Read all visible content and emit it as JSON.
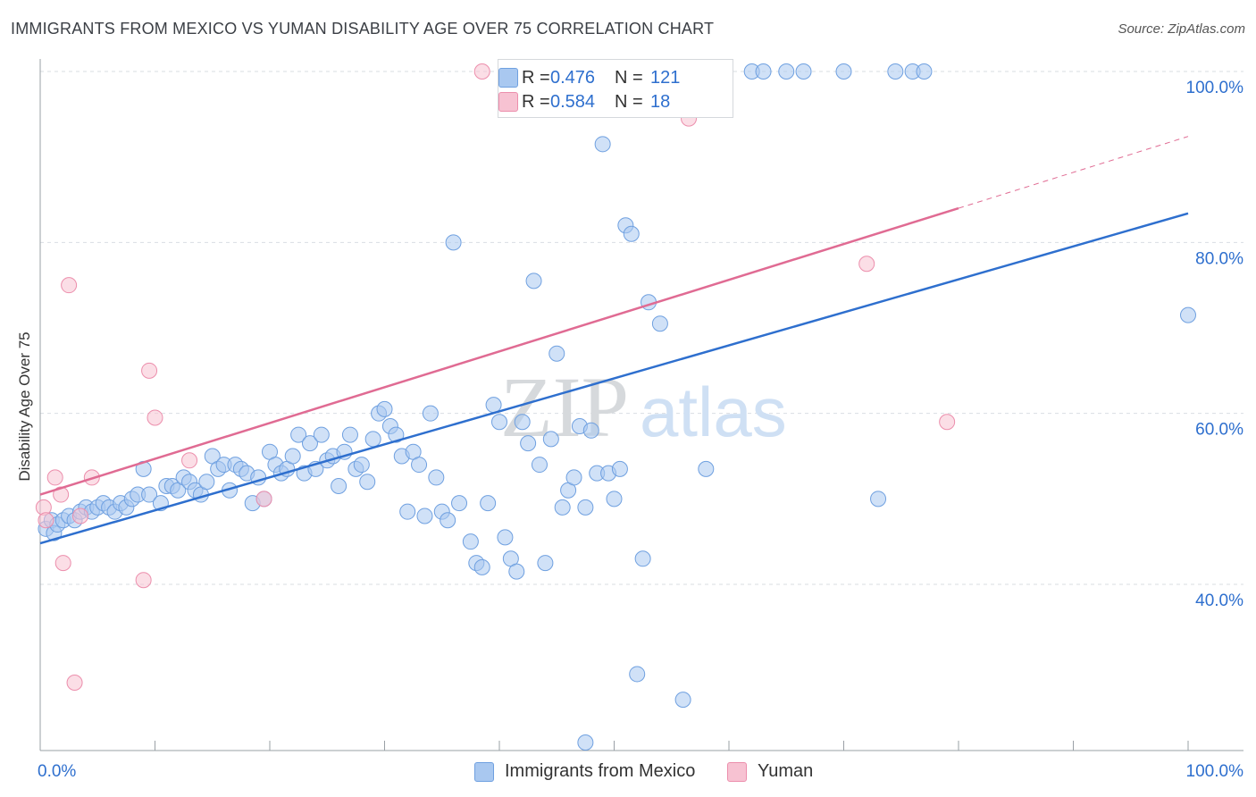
{
  "title": "IMMIGRANTS FROM MEXICO VS YUMAN DISABILITY AGE OVER 75 CORRELATION CHART",
  "source": "Source: ZipAtlas.com",
  "watermark": {
    "zip": "ZIP",
    "atlas": "atlas"
  },
  "colors": {
    "blue_fill": "#a9c8f0",
    "blue_stroke": "#6fa0e0",
    "blue_line": "#2e6fce",
    "pink_fill": "#f7c2d2",
    "pink_stroke": "#ec8eac",
    "pink_line": "#e06b93",
    "grid": "#d9dde2",
    "tick_label": "#2e6fce"
  },
  "legend": {
    "rows": [
      {
        "r_label": "R =",
        "r_value": "0.476",
        "n_label": "N =",
        "n_value": "121"
      },
      {
        "r_label": "R =",
        "r_value": "0.584",
        "n_label": "N =",
        "n_value": "18"
      }
    ]
  },
  "bottom_legend": [
    "Immigrants from Mexico",
    "Yuman"
  ],
  "chart_data": {
    "type": "scatter",
    "title": "IMMIGRANTS FROM MEXICO VS YUMAN DISABILITY AGE OVER 75 CORRELATION CHART",
    "xlabel": "",
    "ylabel": "Disability Age Over 75",
    "xlim": [
      0,
      100
    ],
    "ylim": [
      20,
      102
    ],
    "x_tick_labels": [
      "0.0%",
      "100.0%"
    ],
    "y_tick_labels": [
      "40.0%",
      "60.0%",
      "80.0%",
      "100.0%"
    ],
    "y_ticks": [
      40,
      60,
      80,
      100
    ],
    "grid": true,
    "series": [
      {
        "name": "Immigrants from Mexico",
        "r": 0.476,
        "n": 121,
        "trend": {
          "x": [
            0,
            100
          ],
          "y": [
            44.8,
            83.4
          ],
          "dashed_to": null
        },
        "points": [
          [
            0.5,
            46.5
          ],
          [
            1.0,
            47.5
          ],
          [
            1.2,
            46.0
          ],
          [
            1.5,
            47.0
          ],
          [
            2.0,
            47.5
          ],
          [
            2.5,
            48.0
          ],
          [
            3.0,
            47.5
          ],
          [
            3.5,
            48.5
          ],
          [
            4.0,
            49.0
          ],
          [
            4.5,
            48.5
          ],
          [
            5.0,
            49.0
          ],
          [
            5.5,
            49.5
          ],
          [
            6.0,
            49.0
          ],
          [
            6.5,
            48.5
          ],
          [
            7.0,
            49.5
          ],
          [
            7.5,
            49.0
          ],
          [
            8.0,
            50.0
          ],
          [
            8.5,
            50.5
          ],
          [
            9.0,
            53.5
          ],
          [
            9.5,
            50.5
          ],
          [
            10.5,
            49.5
          ],
          [
            11.0,
            51.5
          ],
          [
            11.5,
            51.5
          ],
          [
            12.0,
            51.0
          ],
          [
            12.5,
            52.5
          ],
          [
            13.0,
            52.0
          ],
          [
            13.5,
            51.0
          ],
          [
            14.0,
            50.5
          ],
          [
            14.5,
            52.0
          ],
          [
            15.0,
            55.0
          ],
          [
            15.5,
            53.5
          ],
          [
            16.0,
            54.0
          ],
          [
            16.5,
            51.0
          ],
          [
            17.0,
            54.0
          ],
          [
            17.5,
            53.5
          ],
          [
            18.0,
            53.0
          ],
          [
            18.5,
            49.5
          ],
          [
            19.0,
            52.5
          ],
          [
            19.5,
            50.0
          ],
          [
            20.0,
            55.5
          ],
          [
            20.5,
            54.0
          ],
          [
            21.0,
            53.0
          ],
          [
            21.5,
            53.5
          ],
          [
            22.0,
            55.0
          ],
          [
            22.5,
            57.5
          ],
          [
            23.0,
            53.0
          ],
          [
            23.5,
            56.5
          ],
          [
            24.0,
            53.5
          ],
          [
            24.5,
            57.5
          ],
          [
            25.0,
            54.5
          ],
          [
            25.5,
            55.0
          ],
          [
            26.0,
            51.5
          ],
          [
            26.5,
            55.5
          ],
          [
            27.0,
            57.5
          ],
          [
            27.5,
            53.5
          ],
          [
            28.0,
            54.0
          ],
          [
            28.5,
            52.0
          ],
          [
            29.0,
            57.0
          ],
          [
            29.5,
            60.0
          ],
          [
            30.0,
            60.5
          ],
          [
            30.5,
            58.5
          ],
          [
            31.0,
            57.5
          ],
          [
            31.5,
            55.0
          ],
          [
            32.0,
            48.5
          ],
          [
            32.5,
            55.5
          ],
          [
            33.0,
            54.0
          ],
          [
            33.5,
            48.0
          ],
          [
            34.0,
            60.0
          ],
          [
            34.5,
            52.5
          ],
          [
            35.0,
            48.5
          ],
          [
            35.5,
            47.5
          ],
          [
            36.0,
            80.0
          ],
          [
            36.5,
            49.5
          ],
          [
            37.5,
            45.0
          ],
          [
            38.0,
            42.5
          ],
          [
            38.5,
            42.0
          ],
          [
            39.0,
            49.5
          ],
          [
            39.5,
            61.0
          ],
          [
            40.0,
            59.0
          ],
          [
            40.5,
            45.5
          ],
          [
            41.0,
            43.0
          ],
          [
            41.5,
            41.5
          ],
          [
            42.0,
            59.0
          ],
          [
            42.5,
            56.5
          ],
          [
            43.0,
            75.5
          ],
          [
            43.5,
            54.0
          ],
          [
            44.0,
            42.5
          ],
          [
            44.5,
            57.0
          ],
          [
            45.0,
            67.0
          ],
          [
            45.5,
            49.0
          ],
          [
            46.0,
            51.0
          ],
          [
            46.5,
            52.5
          ],
          [
            47.0,
            58.5
          ],
          [
            47.5,
            49.0
          ],
          [
            48.0,
            58.0
          ],
          [
            48.5,
            53.0
          ],
          [
            49.0,
            91.5
          ],
          [
            49.5,
            53.0
          ],
          [
            50.0,
            50.0
          ],
          [
            50.5,
            53.5
          ],
          [
            51.0,
            82.0
          ],
          [
            51.5,
            81.0
          ],
          [
            52.0,
            29.5
          ],
          [
            52.5,
            43.0
          ],
          [
            53.0,
            73.0
          ],
          [
            54.0,
            70.5
          ],
          [
            55.0,
            99.5
          ],
          [
            56.0,
            26.5
          ],
          [
            57.0,
            96.5
          ],
          [
            58.0,
            53.5
          ],
          [
            62.0,
            100.0
          ],
          [
            63.0,
            100.0
          ],
          [
            65.0,
            100.0
          ],
          [
            66.5,
            100.0
          ],
          [
            70.0,
            100.0
          ],
          [
            73.0,
            50.0
          ],
          [
            74.5,
            100.0
          ],
          [
            76.0,
            100.0
          ],
          [
            77.0,
            100.0
          ],
          [
            100.0,
            71.5
          ],
          [
            47.5,
            21.5
          ]
        ]
      },
      {
        "name": "Yuman",
        "r": 0.584,
        "n": 18,
        "trend": {
          "x": [
            0,
            80
          ],
          "y": [
            50.5,
            84.0
          ],
          "dashed_to": [
            100,
            92.4
          ]
        },
        "points": [
          [
            0.3,
            49.0
          ],
          [
            0.5,
            47.5
          ],
          [
            1.3,
            52.5
          ],
          [
            1.8,
            50.5
          ],
          [
            2.0,
            42.5
          ],
          [
            2.5,
            75.0
          ],
          [
            3.0,
            28.5
          ],
          [
            3.5,
            48.0
          ],
          [
            4.5,
            52.5
          ],
          [
            9.0,
            40.5
          ],
          [
            9.5,
            65.0
          ],
          [
            10.0,
            59.5
          ],
          [
            13.0,
            54.5
          ],
          [
            19.5,
            50.0
          ],
          [
            38.5,
            100.0
          ],
          [
            56.5,
            94.5
          ],
          [
            72.0,
            77.5
          ],
          [
            79.0,
            59.0
          ]
        ]
      }
    ]
  }
}
